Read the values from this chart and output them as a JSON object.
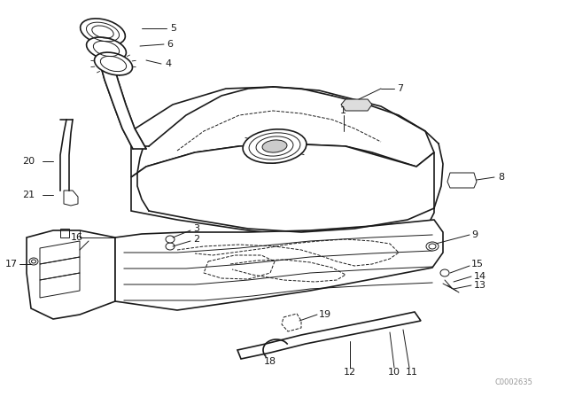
{
  "bg_color": "#ffffff",
  "line_color": "#1a1a1a",
  "watermark": "C0002635",
  "fig_w": 6.4,
  "fig_h": 4.48,
  "dpi": 100
}
